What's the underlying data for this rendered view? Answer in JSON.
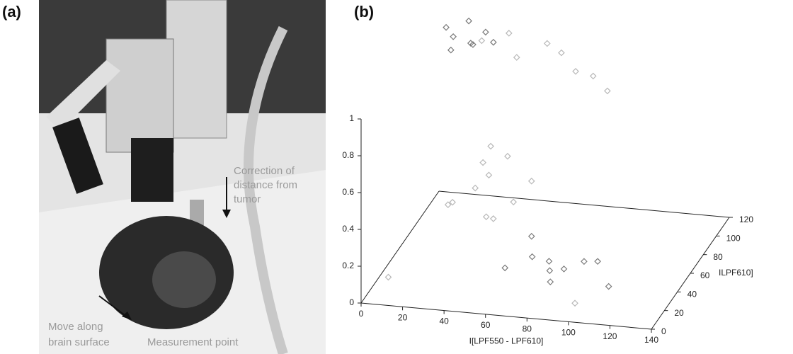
{
  "panel_a": {
    "label": "(a)",
    "annotations": {
      "correction": [
        "Correction of",
        "distance from",
        "tumor"
      ],
      "move": [
        "Move along",
        "brain surface"
      ],
      "measurement": "Measurement point"
    }
  },
  "chart_data": {
    "type": "scatter3d",
    "panel_label": "(b)",
    "xlabel": "I[LPF550 - LPF610]",
    "ylabel": "ILPF610]",
    "xlim": [
      0,
      140
    ],
    "ylim": [
      0,
      120
    ],
    "zlim": [
      0,
      1
    ],
    "xticks": [
      0,
      20,
      40,
      60,
      80,
      100,
      120,
      140
    ],
    "yticks": [
      0,
      20,
      40,
      60,
      80,
      100,
      120
    ],
    "zticks": [
      0,
      0.2,
      0.4,
      0.6,
      0.8,
      1
    ],
    "series": [
      {
        "color": "#7a7a7a",
        "x": [
          5,
          10,
          15,
          20,
          25,
          30,
          12,
          22,
          60,
          70,
          80,
          90,
          100,
          75,
          85,
          95,
          110,
          65
        ],
        "y": [
          115,
          110,
          118,
          105,
          112,
          108,
          100,
          102,
          30,
          40,
          35,
          25,
          45,
          50,
          20,
          40,
          30,
          55
        ],
        "z": [
          0.92,
          0.9,
          0.95,
          0.9,
          0.93,
          0.9,
          0.88,
          0.91,
          0.1,
          0.12,
          0.08,
          0.15,
          0.1,
          0.05,
          0.1,
          0.12,
          0.05,
          0.15
        ]
      },
      {
        "color": "#b8b8b8",
        "x": [
          30,
          50,
          70,
          90,
          60,
          40,
          80,
          100,
          20,
          30,
          40,
          50,
          35,
          45,
          40,
          55,
          65,
          50,
          30,
          10,
          100
        ],
        "y": [
          90,
          80,
          85,
          70,
          95,
          100,
          75,
          60,
          70,
          80,
          65,
          75,
          85,
          60,
          60,
          50,
          55,
          40,
          45,
          10,
          10
        ],
        "z": [
          1,
          0.98,
          1,
          0.97,
          0.99,
          1,
          0.96,
          0.95,
          0.2,
          0.25,
          0.18,
          0.22,
          0.3,
          0.2,
          0.5,
          0.6,
          0.45,
          0.7,
          0.35,
          0.1,
          0.05
        ]
      }
    ]
  }
}
